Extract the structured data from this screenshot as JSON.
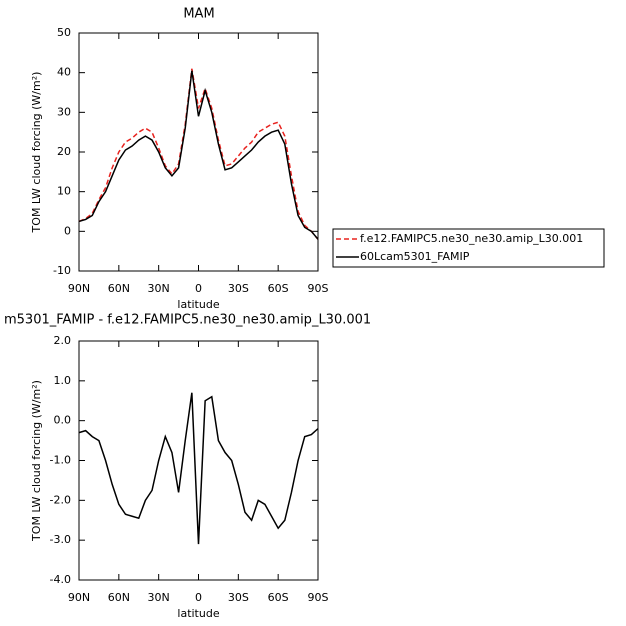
{
  "chart_data": [
    {
      "type": "line",
      "title": "MAM",
      "x_label": "latitude",
      "y_label": "TOM LW cloud forcing (W/m²)",
      "x": [
        90,
        85,
        80,
        75,
        70,
        65,
        60,
        55,
        50,
        45,
        40,
        35,
        30,
        25,
        20,
        15,
        10,
        5,
        0,
        -5,
        -10,
        -15,
        -20,
        -25,
        -30,
        -35,
        -40,
        -45,
        -50,
        -55,
        -60,
        -65,
        -70,
        -75,
        -80,
        -85,
        -90
      ],
      "series": [
        {
          "name": "f.e12.FAMIPC5.ne30_ne30.amip_L30.001",
          "color": "#e8231f",
          "line_style": "dashed",
          "values": [
            2.5,
            3.2,
            4.5,
            8,
            11,
            16,
            20,
            22.5,
            23.5,
            25,
            26,
            25,
            21,
            16.5,
            14.5,
            17,
            27,
            41,
            31,
            36,
            31,
            23,
            16.5,
            17,
            19,
            21,
            22.5,
            25,
            26,
            27,
            27.5,
            24,
            14,
            5,
            1.5,
            0,
            -2
          ]
        },
        {
          "name": "60Lcam5301_FAMIP",
          "color": "#000000",
          "line_style": "solid",
          "values": [
            2.5,
            3,
            4,
            7.5,
            10,
            14,
            18,
            20.5,
            21.5,
            23,
            24,
            23,
            20,
            16,
            14,
            16,
            26,
            40.5,
            29,
            35.5,
            30,
            22,
            15.5,
            16,
            17.5,
            19,
            20.5,
            22.5,
            24,
            25,
            25.5,
            22,
            12,
            4,
            1,
            0,
            -2
          ]
        }
      ],
      "xlim": [
        90,
        -90
      ],
      "xticks": [
        {
          "value": 90,
          "label": "90N"
        },
        {
          "value": 60,
          "label": "60N"
        },
        {
          "value": 30,
          "label": "30N"
        },
        {
          "value": 0,
          "label": "0"
        },
        {
          "value": -30,
          "label": "30S"
        },
        {
          "value": -60,
          "label": "60S"
        },
        {
          "value": -90,
          "label": "90S"
        }
      ],
      "ylim": [
        -10,
        50
      ],
      "yticks": [
        -10,
        0,
        10,
        20,
        30,
        40,
        50
      ],
      "legend_position": "right"
    },
    {
      "type": "line",
      "title": "m5301_FAMIP - f.e12.FAMIPC5.ne30_ne30.amip_L30.001",
      "x_label": "latitude",
      "y_label": "TOM LW cloud forcing (W/m²)",
      "x": [
        90,
        85,
        80,
        75,
        70,
        65,
        60,
        55,
        50,
        45,
        40,
        35,
        30,
        25,
        20,
        15,
        10,
        5,
        0,
        -5,
        -10,
        -15,
        -20,
        -25,
        -30,
        -35,
        -40,
        -45,
        -50,
        -55,
        -60,
        -65,
        -70,
        -75,
        -80,
        -85,
        -90
      ],
      "series": [
        {
          "color": "#000000",
          "line_style": "solid",
          "values": [
            -0.3,
            -0.25,
            -0.4,
            -0.5,
            -1.0,
            -1.6,
            -2.1,
            -2.35,
            -2.4,
            -2.45,
            -2.0,
            -1.75,
            -1.0,
            -0.4,
            -0.8,
            -1.8,
            -0.5,
            0.7,
            -3.1,
            0.5,
            0.6,
            -0.5,
            -0.8,
            -1.0,
            -1.6,
            -2.3,
            -2.5,
            -2.0,
            -2.1,
            -2.4,
            -2.7,
            -2.5,
            -1.8,
            -1.0,
            -0.4,
            -0.35,
            -0.2
          ]
        }
      ],
      "xlim": [
        90,
        -90
      ],
      "xticks": [
        {
          "value": 90,
          "label": "90N"
        },
        {
          "value": 60,
          "label": "60N"
        },
        {
          "value": 30,
          "label": "30N"
        },
        {
          "value": 0,
          "label": "0"
        },
        {
          "value": -30,
          "label": "30S"
        },
        {
          "value": -60,
          "label": "60S"
        },
        {
          "value": -90,
          "label": "90S"
        }
      ],
      "ylim": [
        -4,
        2
      ],
      "yticks": [
        {
          "value": -4,
          "label": "-4.0"
        },
        {
          "value": -3,
          "label": "-3.0"
        },
        {
          "value": -2,
          "label": "-2.0"
        },
        {
          "value": -1,
          "label": "-1.0"
        },
        {
          "value": 0,
          "label": "0.0"
        },
        {
          "value": 1,
          "label": "1.0"
        },
        {
          "value": 2,
          "label": "2.0"
        }
      ]
    }
  ]
}
